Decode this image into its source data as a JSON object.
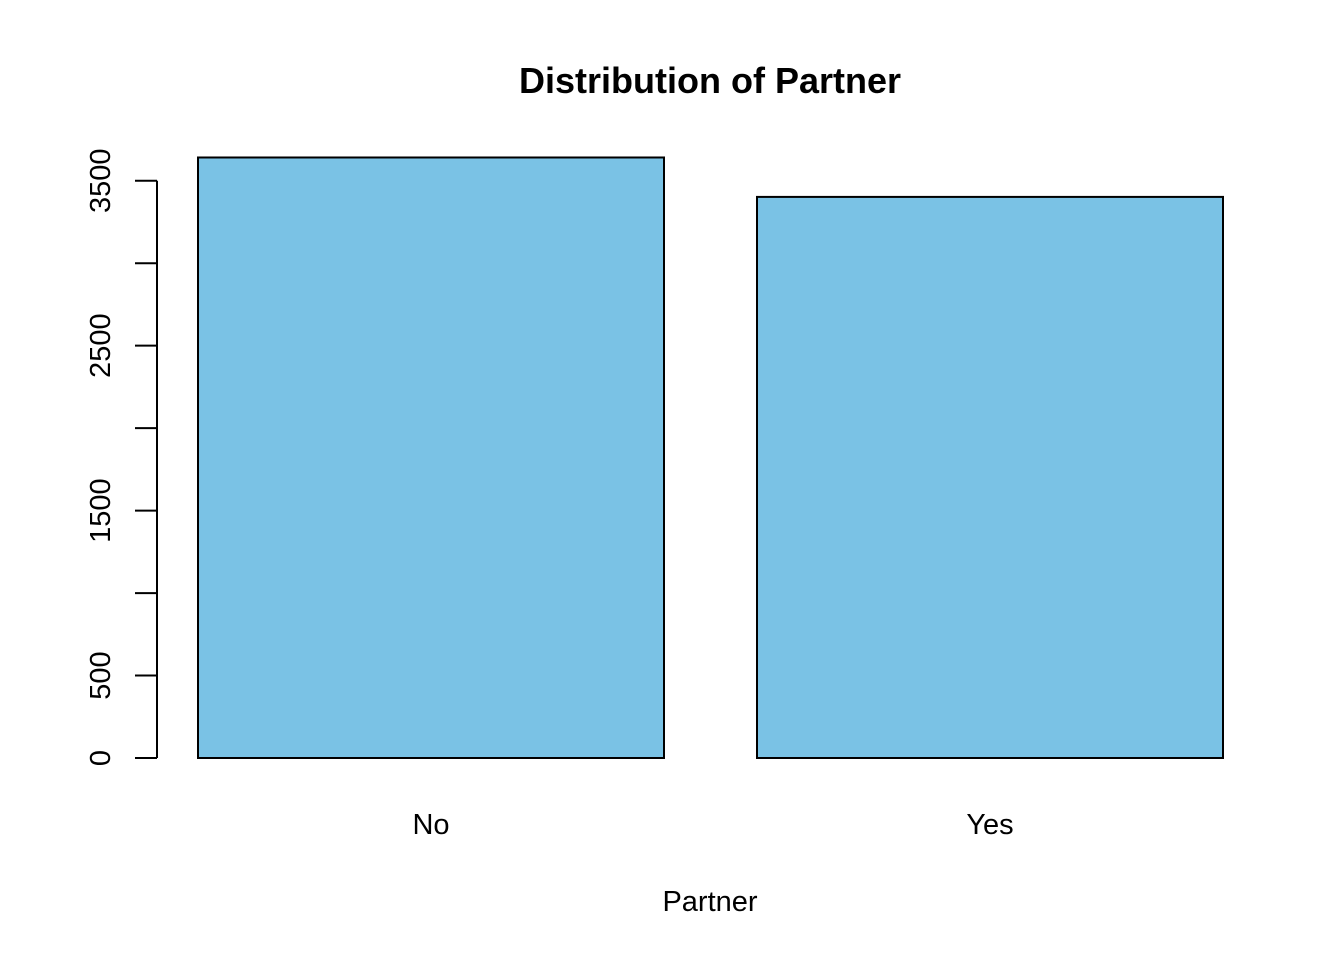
{
  "chart_data": {
    "type": "bar",
    "title": "Distribution of Partner",
    "xlabel": "Partner",
    "ylabel": "",
    "categories": [
      "No",
      "Yes"
    ],
    "values": [
      3641,
      3402
    ],
    "ylim": [
      0,
      3650
    ],
    "y_ticks": [
      0,
      500,
      1000,
      1500,
      2000,
      2500,
      3000,
      3500
    ],
    "y_tick_labels": [
      "0",
      "500",
      "",
      "1500",
      "",
      "2500",
      "",
      "3500"
    ],
    "bar_color": "#7AC2E5",
    "bar_edge_color": "#000000",
    "grid": false,
    "legend": "none"
  }
}
